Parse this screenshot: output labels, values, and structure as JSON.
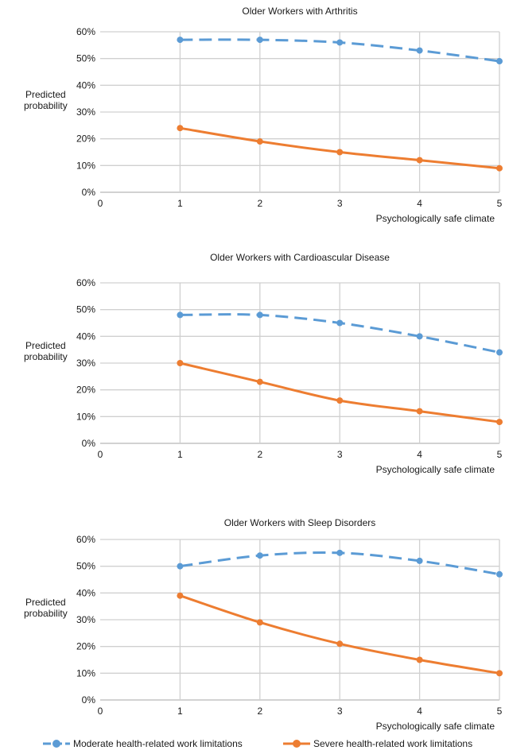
{
  "chart_data": [
    {
      "type": "line",
      "title": "Older Workers with Arthritis",
      "ylabel": "Predicted probability",
      "xlabel": "Psychologically safe climate",
      "x": [
        1,
        2,
        3,
        4,
        5
      ],
      "xlim": [
        0,
        5
      ],
      "xticks": [
        0,
        1,
        2,
        3,
        4,
        5
      ],
      "ylim": [
        0,
        60
      ],
      "yticks": [
        "0%",
        "10%",
        "20%",
        "30%",
        "40%",
        "50%",
        "60%"
      ],
      "grid": true,
      "series": [
        {
          "name": "Moderate health-related work limitations",
          "values": [
            57,
            57,
            56,
            53,
            49
          ]
        },
        {
          "name": "Severe health-related work limitations",
          "values": [
            24,
            19,
            15,
            12,
            9
          ]
        }
      ]
    },
    {
      "type": "line",
      "title": "Older Workers with Cardioascular Disease",
      "ylabel": "Predicted probability",
      "xlabel": "Psychologically safe climate",
      "x": [
        1,
        2,
        3,
        4,
        5
      ],
      "xlim": [
        0,
        5
      ],
      "xticks": [
        0,
        1,
        2,
        3,
        4,
        5
      ],
      "ylim": [
        0,
        60
      ],
      "yticks": [
        "0%",
        "10%",
        "20%",
        "30%",
        "40%",
        "50%",
        "60%"
      ],
      "grid": true,
      "series": [
        {
          "name": "Moderate health-related work limitations",
          "values": [
            48,
            48,
            45,
            40,
            34
          ]
        },
        {
          "name": "Severe health-related work limitations",
          "values": [
            30,
            23,
            16,
            12,
            8
          ]
        }
      ]
    },
    {
      "type": "line",
      "title": "Older Workers with Sleep Disorders",
      "ylabel": "Predicted probability",
      "xlabel": "Psychologically safe climate",
      "x": [
        1,
        2,
        3,
        4,
        5
      ],
      "xlim": [
        0,
        5
      ],
      "xticks": [
        0,
        1,
        2,
        3,
        4,
        5
      ],
      "ylim": [
        0,
        60
      ],
      "yticks": [
        "0%",
        "10%",
        "20%",
        "30%",
        "40%",
        "50%",
        "60%"
      ],
      "grid": true,
      "series": [
        {
          "name": "Moderate health-related work limitations",
          "values": [
            50,
            54,
            55,
            52,
            47
          ]
        },
        {
          "name": "Severe health-related work limitations",
          "values": [
            39,
            29,
            21,
            15,
            10
          ]
        }
      ]
    }
  ],
  "legend": {
    "placement": "bottom",
    "items": [
      {
        "label": "Moderate health-related work limitations",
        "color": "#5b9bd5",
        "style": "dashed"
      },
      {
        "label": "Severe health-related work limitations",
        "color": "#ed7d31",
        "style": "solid"
      }
    ]
  },
  "colors": {
    "moderate": "#5b9bd5",
    "severe": "#ed7d31"
  }
}
